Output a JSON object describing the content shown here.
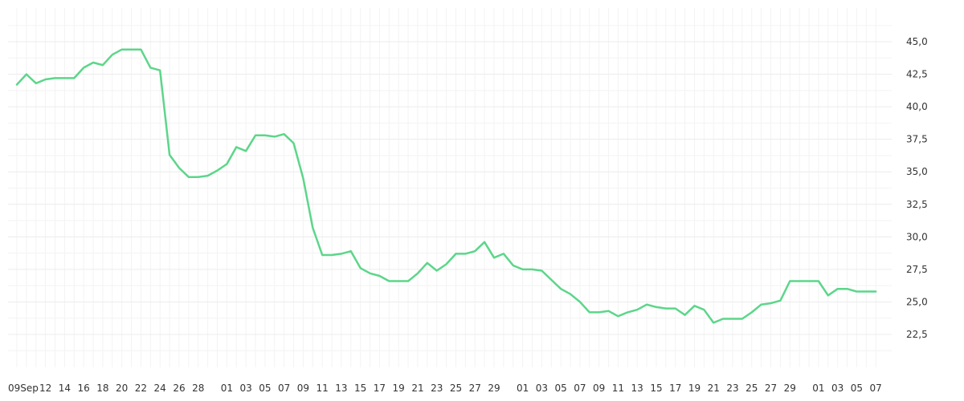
{
  "chart_data": {
    "type": "line",
    "title": "",
    "xlabel": "",
    "ylabel": "",
    "ylim": [
      20,
      47
    ],
    "y_ticks": [
      22.5,
      25.0,
      27.5,
      30.0,
      32.5,
      35.0,
      37.5,
      40.0,
      42.5,
      45.0
    ],
    "y_tick_labels": [
      "22,5",
      "25,0",
      "27,5",
      "30,0",
      "32,5",
      "35,0",
      "37,5",
      "40,0",
      "42,5",
      "45,0"
    ],
    "y_axis_position": "right",
    "grid": true,
    "series_color": "#5cd68a",
    "x_tick_labels": [
      "09Sep",
      "12",
      "14",
      "16",
      "18",
      "20",
      "22",
      "24",
      "26",
      "28",
      "01",
      "03",
      "05",
      "07",
      "09",
      "11",
      "13",
      "15",
      "17",
      "19",
      "21",
      "23",
      "25",
      "27",
      "29",
      "01",
      "03",
      "05",
      "07",
      "09",
      "11",
      "13",
      "15",
      "17",
      "19",
      "21",
      "23",
      "25",
      "27",
      "29",
      "01",
      "03",
      "05",
      "07"
    ],
    "x_tick_index": [
      0,
      3,
      5,
      7,
      9,
      11,
      13,
      15,
      17,
      19,
      22,
      24,
      26,
      28,
      30,
      32,
      34,
      36,
      38,
      40,
      42,
      44,
      46,
      48,
      50,
      53,
      55,
      57,
      59,
      61,
      63,
      65,
      67,
      69,
      71,
      73,
      75,
      77,
      79,
      81,
      84,
      86,
      88,
      90
    ],
    "series": [
      {
        "values": [
          41.7,
          42.5,
          41.8,
          42.1,
          42.2,
          42.2,
          42.2,
          43.0,
          43.4,
          43.2,
          44.0,
          44.4,
          44.4,
          44.4,
          43.0,
          42.8,
          36.3,
          35.3,
          34.6,
          34.6,
          34.7,
          35.1,
          35.6,
          36.9,
          36.6,
          37.8,
          37.8,
          37.7,
          37.9,
          37.2,
          34.5,
          30.7,
          28.6,
          28.6,
          28.7,
          28.9,
          27.6,
          27.2,
          27.0,
          26.6,
          26.6,
          26.6,
          27.2,
          28.0,
          27.4,
          27.9,
          28.7,
          28.7,
          28.9,
          29.6,
          28.4,
          28.7,
          27.8,
          27.5,
          27.5,
          27.4,
          26.7,
          26.0,
          25.6,
          25.0,
          24.2,
          24.2,
          24.3,
          23.9,
          24.2,
          24.4,
          24.8,
          24.6,
          24.5,
          24.5,
          24.0,
          24.7,
          24.4,
          23.4,
          23.7,
          23.7,
          23.7,
          24.2,
          24.8,
          24.9,
          25.1,
          26.6,
          26.6,
          26.6,
          26.6,
          25.5,
          26.0,
          26.0,
          25.8,
          25.8,
          25.8
        ]
      }
    ]
  }
}
